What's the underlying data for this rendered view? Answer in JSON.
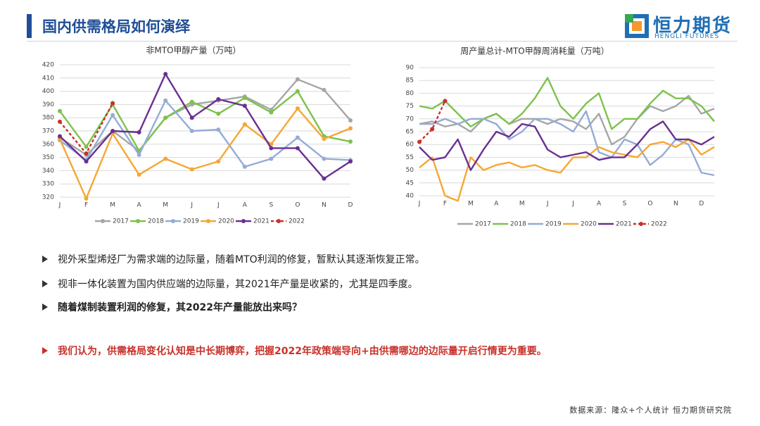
{
  "header": {
    "title": "国内供需格局如何演绎",
    "logo_cn": "恒力期货",
    "logo_en": "HENGLI FUTURES"
  },
  "chart_data": [
    {
      "type": "line",
      "title": "非MTO甲醇产量（万吨）",
      "categories": [
        "J",
        "F",
        "M",
        "A",
        "M",
        "J",
        "J",
        "A",
        "S",
        "O",
        "N",
        "D"
      ],
      "ylim": [
        320,
        420
      ],
      "yticks": [
        320,
        330,
        340,
        350,
        360,
        370,
        380,
        390,
        400,
        410,
        420
      ],
      "grid": true,
      "markers": true,
      "series": [
        {
          "name": "2017",
          "color": "#a6a6a6",
          "values": [
            365,
            352,
            370,
            355,
            380,
            390,
            393,
            396,
            386,
            409,
            401,
            378
          ]
        },
        {
          "name": "2018",
          "color": "#7dc24b",
          "values": [
            385,
            358,
            390,
            355,
            380,
            392,
            383,
            395,
            384,
            400,
            366,
            362
          ]
        },
        {
          "name": "2019",
          "color": "#94acd6",
          "values": [
            363,
            348,
            382,
            352,
            393,
            370,
            371,
            343,
            349,
            365,
            349,
            348
          ]
        },
        {
          "name": "2020",
          "color": "#f5a733",
          "values": [
            364,
            319,
            368,
            337,
            349,
            341,
            347,
            375,
            360,
            387,
            364,
            372
          ]
        },
        {
          "name": "2021",
          "color": "#6a3091",
          "values": [
            366,
            347,
            370,
            369,
            413,
            380,
            394,
            389,
            357,
            357,
            334,
            347
          ]
        },
        {
          "name": "2022",
          "color": "#c8312b",
          "style": "dashed",
          "values": [
            377,
            353,
            391,
            null,
            null,
            null,
            null,
            null,
            null,
            null,
            null,
            null
          ]
        }
      ]
    },
    {
      "type": "line",
      "title": "周产量总计-MTO甲醇周消耗量（万吨）",
      "categories": [
        "J",
        null,
        "F",
        null,
        "M",
        null,
        "A",
        null,
        "M",
        null,
        "J",
        null,
        "J",
        null,
        "A",
        null,
        "S",
        null,
        "O",
        null,
        "N",
        null,
        "D",
        null
      ],
      "ylim": [
        40,
        90
      ],
      "yticks": [
        40,
        45,
        50,
        55,
        60,
        65,
        70,
        75,
        80,
        85,
        90
      ],
      "grid": true,
      "markers": false,
      "series": [
        {
          "name": "2017",
          "color": "#a6a6a6",
          "values": [
            68,
            69,
            67,
            68,
            65,
            70,
            72,
            68,
            70,
            70,
            68,
            70,
            69,
            66,
            72,
            60,
            63,
            70,
            75,
            73,
            75,
            79,
            72,
            74
          ]
        },
        {
          "name": "2018",
          "color": "#7dc24b",
          "values": [
            75,
            74,
            77,
            72,
            67,
            70,
            72,
            68,
            72,
            78,
            86,
            75,
            70,
            76,
            80,
            66,
            70,
            70,
            76,
            81,
            78,
            78,
            75,
            69
          ]
        },
        {
          "name": "2019",
          "color": "#94acd6",
          "values": [
            68,
            68,
            70,
            68,
            70,
            70,
            68,
            62,
            65,
            70,
            70,
            68,
            65,
            73,
            57,
            55,
            62,
            60,
            52,
            56,
            62,
            60,
            49,
            48
          ]
        },
        {
          "name": "2020",
          "color": "#f5a733",
          "values": [
            51,
            55,
            40,
            38,
            55,
            50,
            52,
            53,
            51,
            52,
            50,
            49,
            55,
            55,
            59,
            57,
            56,
            55,
            60,
            61,
            59,
            62,
            56,
            59
          ]
        },
        {
          "name": "2021",
          "color": "#6a3091",
          "values": [
            59,
            54,
            55,
            62,
            50,
            58,
            65,
            63,
            68,
            67,
            58,
            55,
            56,
            57,
            54,
            55,
            55,
            60,
            66,
            69,
            62,
            62,
            60,
            63
          ]
        },
        {
          "name": "2022",
          "color": "#c8312b",
          "style": "dashed",
          "marker": true,
          "values": [
            61,
            66,
            77,
            null,
            null,
            null,
            null,
            null,
            null,
            null,
            null,
            null,
            null,
            null,
            null,
            null,
            null,
            null,
            null,
            null,
            null,
            null,
            null,
            null
          ]
        }
      ]
    }
  ],
  "bullets": [
    {
      "text": "视外采型烯烃厂为需求端的边际量，随着MTO利润的修复，暂默认其逐渐恢复正常。"
    },
    {
      "text": "视非一体化装置为国内供应端的边际量，其2021年产量是收紧的，尤其是四季度。"
    },
    {
      "text": "随着煤制装置利润的修复，其2022年产量能放出来吗？",
      "bold": true
    },
    {
      "text": "我们认为，供需格局变化认知是中长期博弈，把握2022年政策端导向+由供需哪边的边际量开启行情更为重要。",
      "bold": true,
      "color": "#c8312b"
    }
  ],
  "source": "数据来源：隆众+个人统计 恒力期货研究院"
}
